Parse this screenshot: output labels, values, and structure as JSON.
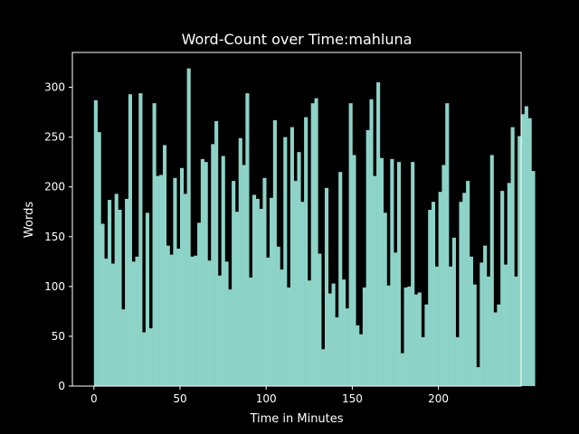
{
  "colors": {
    "background": "#000000",
    "bar": "#8dd3c7",
    "axis": "#ffffff",
    "text": "#ffffff"
  },
  "chart_data": {
    "type": "bar",
    "title": "Word-Count over Time:mahluna",
    "xlabel": "Time in Minutes",
    "ylabel": "Words",
    "xlim": [
      -12.5,
      248
    ],
    "ylim": [
      0,
      335
    ],
    "xticks": [
      0,
      50,
      100,
      150,
      200
    ],
    "yticks": [
      0,
      50,
      100,
      150,
      200,
      250,
      300
    ],
    "grid": false,
    "legend": "none",
    "bin_width": 2,
    "x_start": 0,
    "values": [
      287,
      255,
      163,
      128,
      187,
      123,
      193,
      177,
      77,
      188,
      293,
      125,
      130,
      294,
      54,
      174,
      58,
      284,
      211,
      212,
      242,
      141,
      132,
      209,
      138,
      219,
      193,
      319,
      130,
      131,
      164,
      228,
      225,
      126,
      243,
      266,
      111,
      231,
      125,
      97,
      206,
      175,
      249,
      222,
      294,
      109,
      192,
      188,
      178,
      209,
      129,
      189,
      267,
      140,
      117,
      250,
      99,
      260,
      206,
      235,
      185,
      270,
      106,
      284,
      289,
      133,
      37,
      199,
      93,
      103,
      69,
      215,
      107,
      78,
      284,
      232,
      61,
      52,
      99,
      257,
      288,
      211,
      305,
      229,
      174,
      101,
      228,
      134,
      225,
      33,
      99,
      100,
      225,
      92,
      94,
      49,
      82,
      177,
      185,
      120,
      195,
      222,
      284,
      120,
      149,
      49,
      185,
      194,
      206,
      130,
      102,
      19,
      124,
      141,
      110,
      232,
      74,
      82,
      196,
      122,
      204,
      260,
      110,
      251,
      273,
      281,
      269,
      216
    ]
  }
}
